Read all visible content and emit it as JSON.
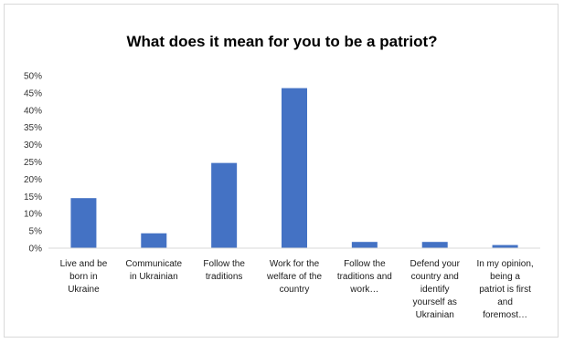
{
  "chart_data": {
    "type": "bar",
    "title": "What does it mean for you to be a patriot?",
    "categories": [
      [
        "Live and be",
        "born in",
        "Ukraine"
      ],
      [
        "Communicate",
        "in Ukrainian"
      ],
      [
        "Follow the",
        "traditions"
      ],
      [
        "Work for the",
        "welfare of the",
        "country"
      ],
      [
        "Follow the",
        "traditions and",
        "work…"
      ],
      [
        "Defend your",
        "country and",
        "identify",
        "yourself as",
        "Ukrainian"
      ],
      [
        "In my opinion,",
        "being a",
        "patriot is first",
        "and",
        "foremost…"
      ]
    ],
    "values": [
      14.5,
      4.3,
      24.7,
      46.4,
      1.8,
      1.8,
      0.9
    ],
    "yticks": [
      "0%",
      "5%",
      "10%",
      "15%",
      "20%",
      "25%",
      "30%",
      "35%",
      "40%",
      "45%",
      "50%"
    ],
    "ylim": [
      0,
      50
    ],
    "bar_color": "#4472c4",
    "grid": false,
    "legend": "none"
  }
}
